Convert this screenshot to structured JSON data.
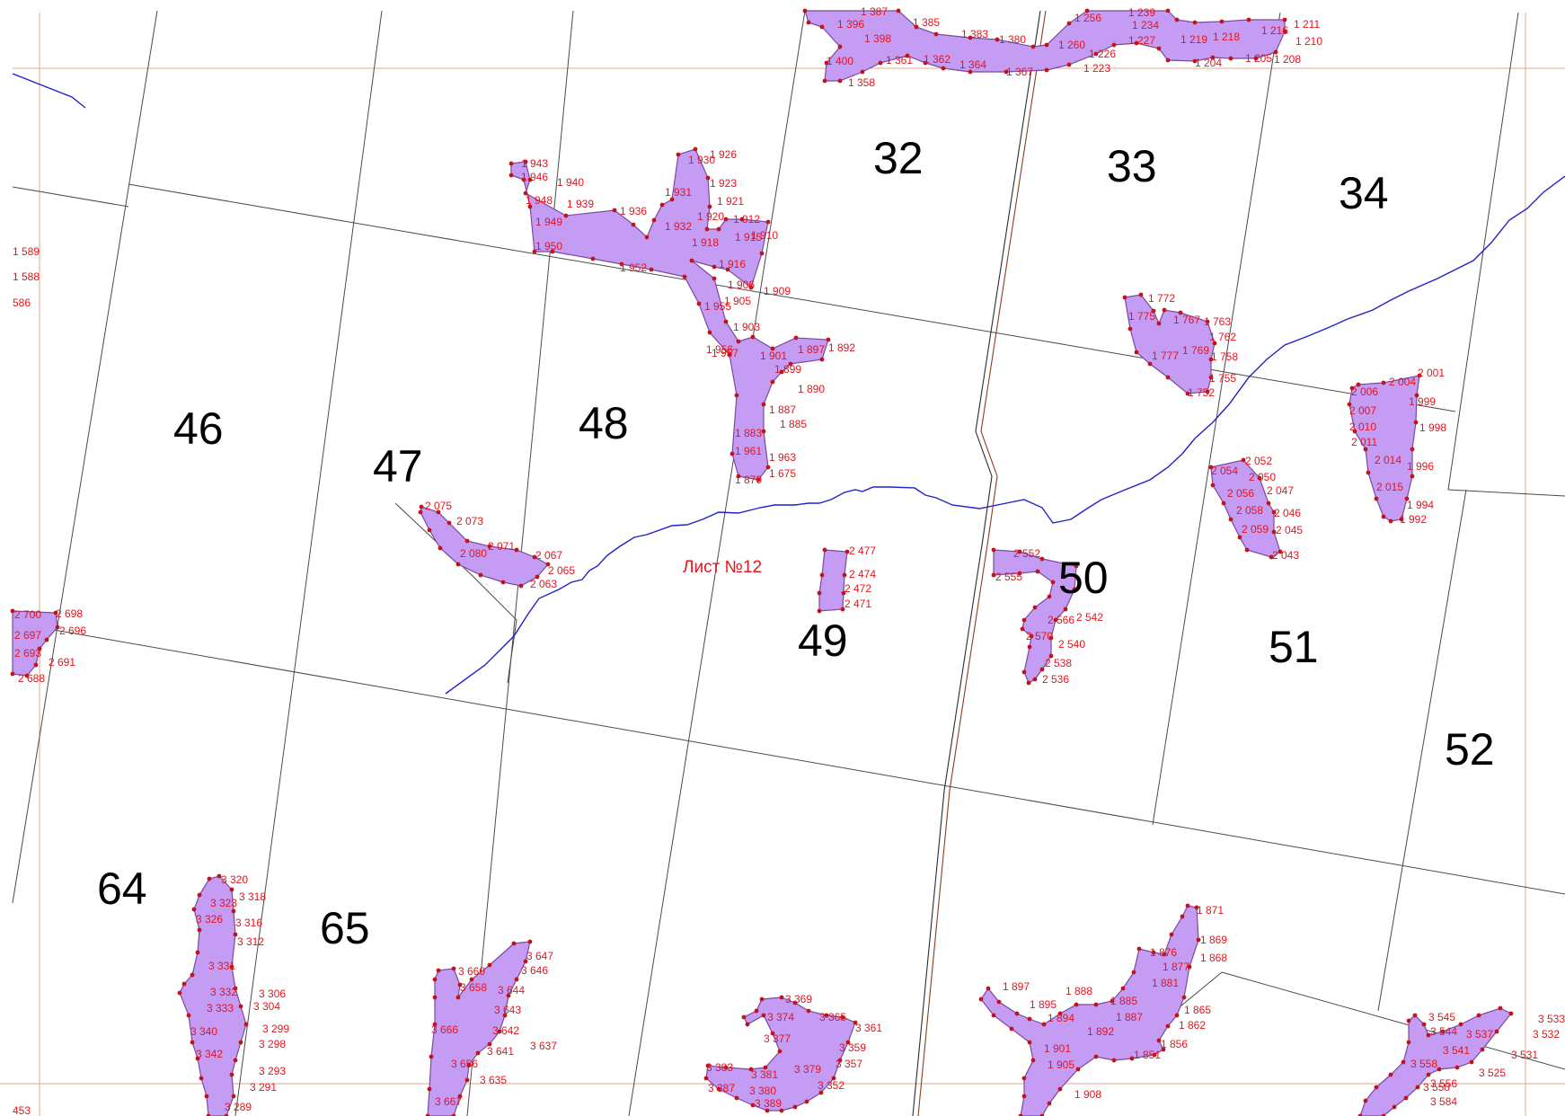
{
  "sheet_label": "Лист №12",
  "colors": {
    "area_fill": "#c49cf4",
    "area_stroke": "#7b4a9b",
    "point_label": "#e8141c",
    "river": "#2121c8",
    "grid": "#e7a58e",
    "boundary": "#4a4a4a",
    "road": "#7a3b1e"
  },
  "parcel_numbers": [
    "32",
    "33",
    "34",
    "46",
    "47",
    "48",
    "49",
    "50",
    "51",
    "52",
    "64",
    "65"
  ],
  "margin_labels": [
    "1 589",
    "1 588",
    "586",
    "453"
  ],
  "point_labels": {
    "area_48": [
      "1 943",
      "1 946",
      "1 940",
      "1 948",
      "1 939",
      "1 949",
      "1 936",
      "1 950",
      "1 952",
      "1 930",
      "1 926",
      "1 931",
      "1 923",
      "1 921",
      "1 920",
      "1 932",
      "1 918",
      "1 912",
      "1 915",
      "1 910",
      "1 916",
      "1 906",
      "1 909",
      "1 905",
      "1 955",
      "1 903",
      "1 956",
      "1 957",
      "1 901",
      "1 897",
      "1 892",
      "1 899",
      "1 890",
      "1 887",
      "1 885",
      "1 883",
      "1 961",
      "1 963",
      "1 879",
      "1 675",
      "1 878"
    ],
    "area_47": [
      "2 075",
      "2 073",
      "2 071",
      "2 080",
      "2 067",
      "2 065",
      "2 063"
    ],
    "area_49": [
      "2 477",
      "2 474",
      "2 472",
      "2 471"
    ],
    "area_50": [
      "2 552",
      "2 555",
      "2 566",
      "2 542",
      "2 570",
      "2 540",
      "2 538",
      "2 536"
    ],
    "area_33": [
      "1 772",
      "1 775",
      "1 767",
      "1 763",
      "1 762",
      "1 769",
      "1 777",
      "1 758",
      "1 755",
      "1 752"
    ],
    "area_34": [
      "2 001",
      "2 004",
      "2 006",
      "1 999",
      "2 007",
      "2 010",
      "1 998",
      "2 011",
      "2 014",
      "1 996",
      "2 015",
      "1 994",
      "1 992"
    ],
    "area_51": [
      "2 052",
      "2 054",
      "2 050",
      "2 047",
      "2 056",
      "2 058",
      "2 046",
      "2 059",
      "2 045",
      "2 043"
    ],
    "area_top": [
      "1 387",
      "1 385",
      "1 396",
      "1 398",
      "1 383",
      "1 380",
      "1 400",
      "1 361",
      "1 362",
      "1 364",
      "1 367",
      "1 358",
      "1 256",
      "1 239",
      "1 234",
      "1 260",
      "1 227",
      "1 226",
      "1 223",
      "1 219",
      "1 218",
      "1 216",
      "1 211",
      "1 210",
      "1 205",
      "1 204",
      "1 208"
    ],
    "area_left": [
      "2 700",
      "2 698",
      "2 697",
      "2 696",
      "2 693",
      "2 691",
      "2 688"
    ],
    "area_64": [
      "3 320",
      "3 323",
      "3 318",
      "3 326",
      "3 316",
      "3 312",
      "3 331",
      "3 332",
      "3 306",
      "3 333",
      "3 304",
      "3 340",
      "3 299",
      "3 298",
      "3 342",
      "3 293",
      "3 291",
      "3 289"
    ],
    "area_65": [
      "3 660",
      "3 647",
      "3 646",
      "3 658",
      "3 644",
      "3 643",
      "3 666",
      "3 642",
      "3 637",
      "3 641",
      "3 656",
      "3 635",
      "3 667"
    ],
    "area_bottom_mid": [
      "3 369",
      "3 374",
      "3 365",
      "3 361",
      "3 377",
      "3 359",
      "3 357",
      "3 383",
      "3 381",
      "3 379",
      "3 387",
      "3 352",
      "3 380",
      "3 389"
    ],
    "area_bottom_right": [
      "1 871",
      "1 869",
      "1 876",
      "1 868",
      "1 877",
      "1 881",
      "1 897",
      "1 888",
      "1 885",
      "1 865",
      "1 895",
      "1 894",
      "1 887",
      "1 862",
      "1 892",
      "1 856",
      "1 901",
      "1 851",
      "1 905",
      "1 908"
    ],
    "area_far_right": [
      "3 533",
      "3 545",
      "3 544",
      "3 537",
      "3 532",
      "3 541",
      "3 531",
      "3 558",
      "3 525",
      "3 556",
      "3 550",
      "3 584"
    ]
  }
}
